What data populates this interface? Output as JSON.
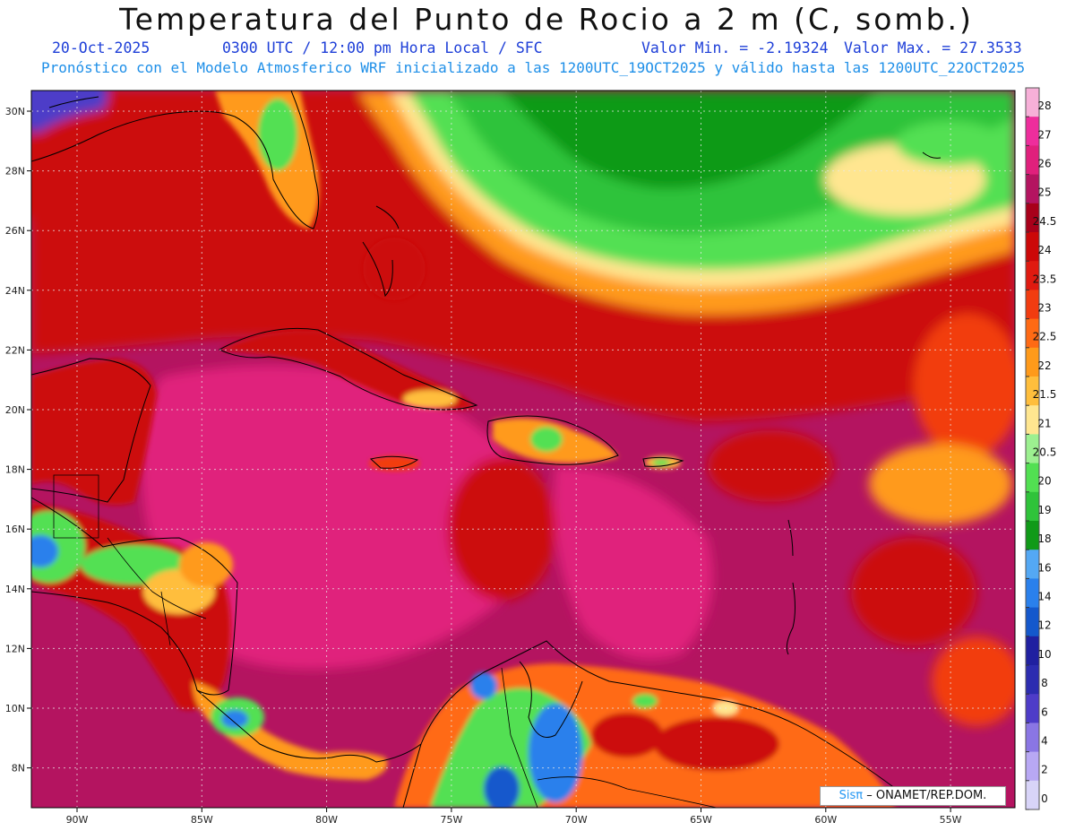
{
  "header": {
    "title": "Temperatura del Punto de Rocio a 2 m (C, somb.)",
    "date": "20-Oct-2025",
    "time": "0300 UTC / 12:00 pm Hora Local / SFC",
    "min": "Valor Min. = -2.19324",
    "max": "Valor Max. = 27.3533",
    "model": "Pronóstico con el Modelo Atmosferico WRF inicializado a las 1200UTC_19OCT2025 y válido hasta las  1200UTC_22OCT2025"
  },
  "map": {
    "lon_labels": [
      "90W",
      "85W",
      "80W",
      "75W",
      "70W",
      "65W",
      "60W",
      "55W"
    ],
    "lat_labels": [
      "30N",
      "28N",
      "26N",
      "24N",
      "22N",
      "20N",
      "18N",
      "16N",
      "14N",
      "12N",
      "10N",
      "8N"
    ]
  },
  "colorbar": {
    "labels": [
      "28",
      "27",
      "26",
      "25",
      "24.5",
      "24",
      "23.5",
      "23",
      "22.5",
      "22",
      "21.5",
      "21",
      "20.5",
      "20",
      "19",
      "18",
      "16",
      "14",
      "12",
      "10",
      "8",
      "6",
      "4",
      "2",
      "0"
    ],
    "colors": [
      "#f7b0d8",
      "#ee2d9c",
      "#e0207c",
      "#b41460",
      "#a8001a",
      "#cc0808",
      "#e01a10",
      "#f23c10",
      "#ff6a14",
      "#ff9a1a",
      "#ffbe3c",
      "#ffe690",
      "#9cf090",
      "#52e052",
      "#2fc33a",
      "#109a18",
      "#54a8f4",
      "#2a80ec",
      "#1458cc",
      "#2020a0",
      "#2c2cb0",
      "#4e3cc8",
      "#8a76e4",
      "#b8a8f4",
      "#d8d4f8"
    ]
  },
  "credit": {
    "logo": "Sisπ",
    "text": "– ONAMET/REP.DOM."
  }
}
